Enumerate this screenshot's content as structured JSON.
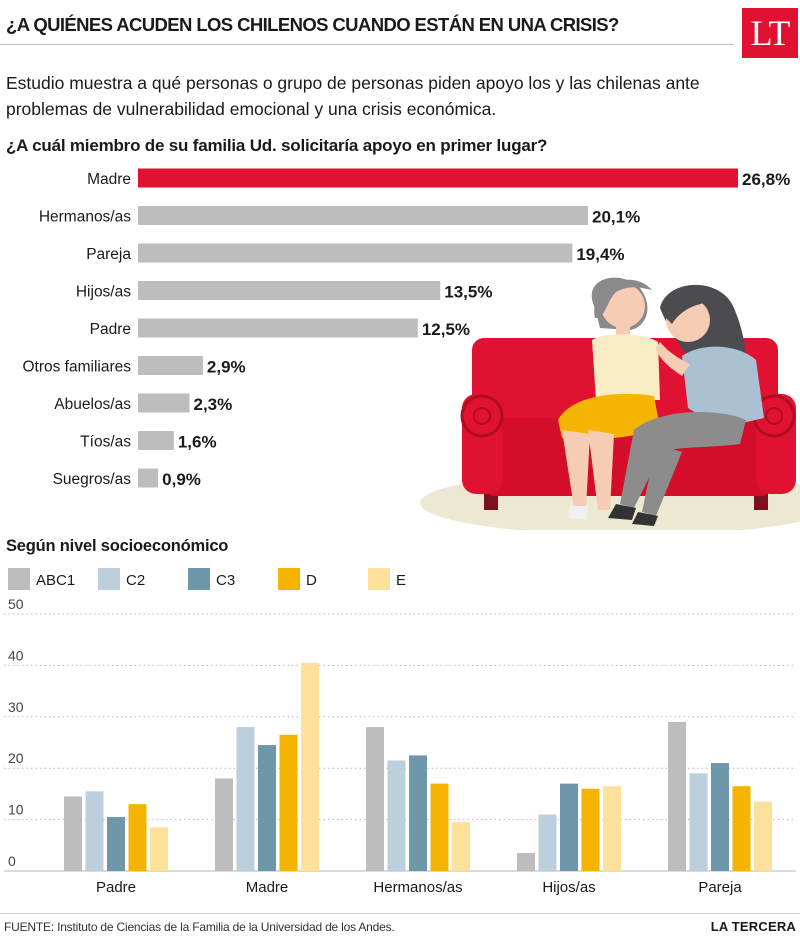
{
  "header": {
    "headline": "¿A QUIÉNES ACUDEN LOS CHILENOS CUANDO ESTÁN EN UNA CRISIS?",
    "logo_text": "LT",
    "lede": "Estudio muestra a qué personas o grupo de personas piden apoyo los y las chilenas ante problemas de vulnerabilidad emocional y una crisis económica."
  },
  "footer": {
    "source": "FUENTE: Instituto de Ciencias de la Familia de la Universidad de los Andes.",
    "brand": "LA TERCERA"
  },
  "illustration": {
    "icon": "two-women-on-red-sofa-illustration",
    "sofa_color": "#e11231",
    "rug_color": "#ece8d2"
  },
  "chart_data": [
    {
      "type": "bar",
      "orientation": "horizontal",
      "title": "¿A cuál miembro de su familia Ud. solicitaría apoyo en primer lugar?",
      "categories": [
        "Madre",
        "Hermanos/as",
        "Pareja",
        "Hijos/as",
        "Padre",
        "Otros familiares",
        "Abuelos/as",
        "Tíos/as",
        "Suegros/as"
      ],
      "values": [
        26.8,
        20.1,
        19.4,
        13.5,
        12.5,
        2.9,
        2.3,
        1.6,
        0.9
      ],
      "value_labels": [
        "26,8%",
        "20,1%",
        "19,4%",
        "13,5%",
        "12,5%",
        "2,9%",
        "2,3%",
        "1,6%",
        "0,9%"
      ],
      "highlight_category": "Madre",
      "highlight_color": "#e11231",
      "bar_color": "#bdbdbd"
    },
    {
      "type": "bar",
      "orientation": "vertical",
      "title": "Según nivel socioeconómico",
      "categories": [
        "Padre",
        "Madre",
        "Hermanos/as",
        "Hijos/as",
        "Pareja"
      ],
      "series": [
        {
          "name": "ABC1",
          "color": "#bdbdbd",
          "values": [
            14.5,
            18,
            28,
            3.5,
            29
          ]
        },
        {
          "name": "C2",
          "color": "#bccfdc",
          "values": [
            15.5,
            28,
            21.5,
            11,
            19
          ]
        },
        {
          "name": "C3",
          "color": "#6f97aa",
          "values": [
            10.5,
            24.5,
            22.5,
            17,
            21
          ]
        },
        {
          "name": "D",
          "color": "#f5b400",
          "values": [
            13,
            26.5,
            17,
            16,
            16.5
          ]
        },
        {
          "name": "E",
          "color": "#fde09a",
          "values": [
            8.5,
            40.5,
            9.5,
            16.5,
            13.5
          ]
        }
      ],
      "yticks": [
        "0",
        "10",
        "20",
        "30",
        "40",
        "50"
      ],
      "ylim": [
        0,
        50
      ],
      "grid": "horizontal-dotted",
      "legend_position": "top-left"
    }
  ]
}
